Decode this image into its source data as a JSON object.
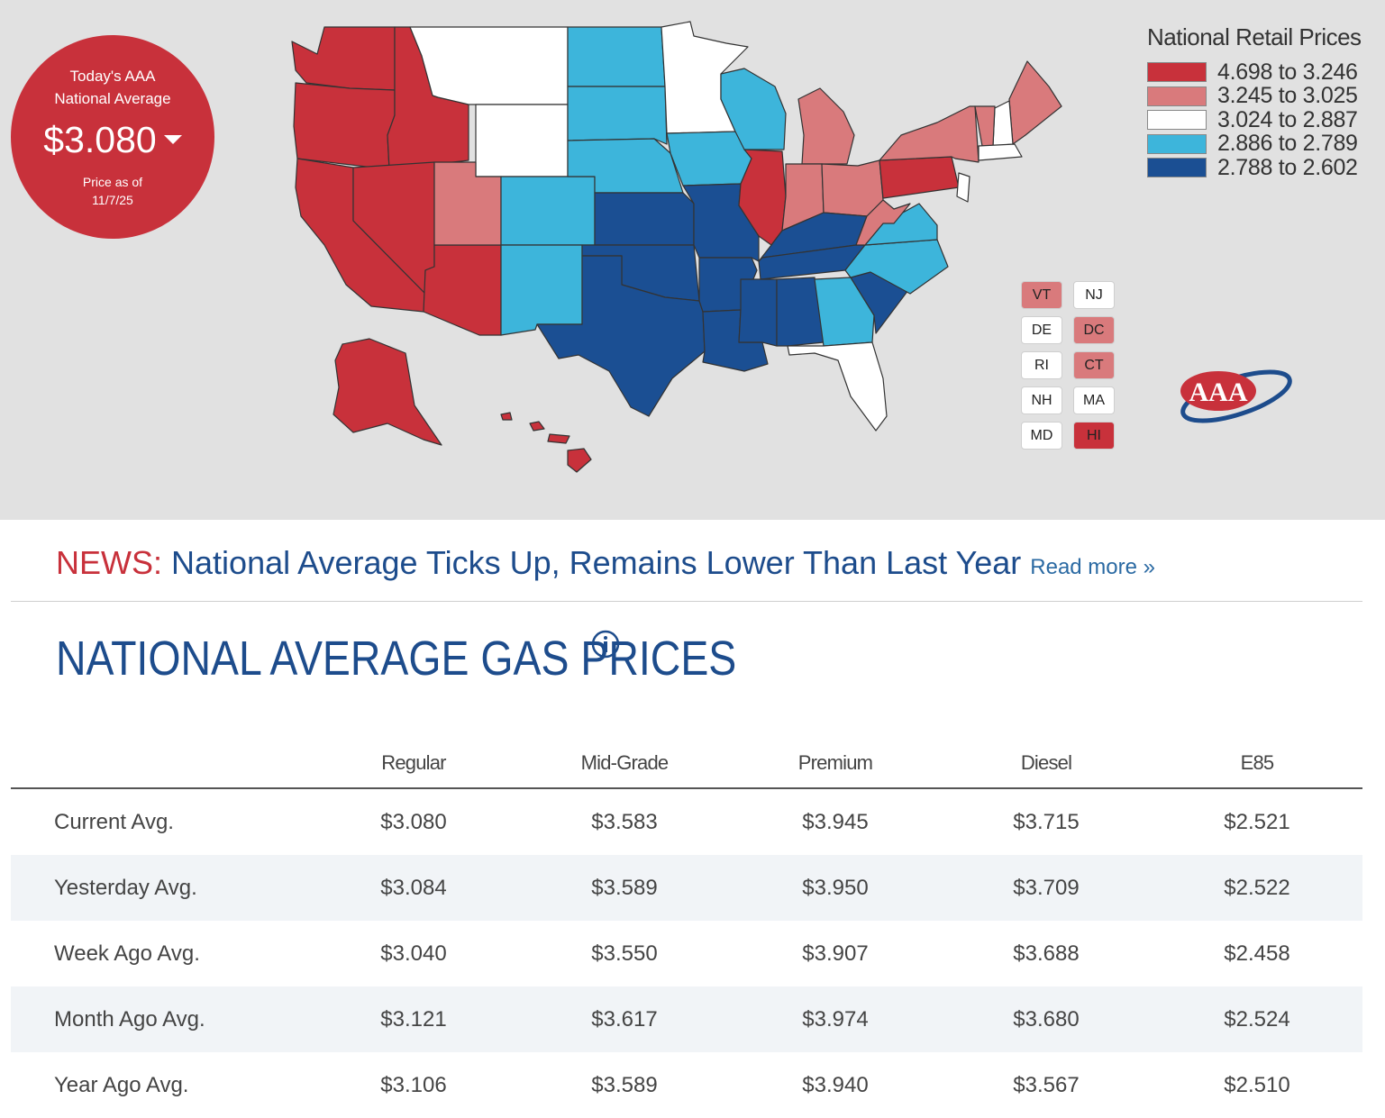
{
  "badge": {
    "title_line1": "Today's AAA",
    "title_line2": "National Average",
    "price": "$3.080",
    "date_line1": "Price as of",
    "date_line2": "11/7/25"
  },
  "legend": {
    "title": "National Retail Prices",
    "items": [
      {
        "label": "4.698 to 3.246",
        "color": "#c8313b"
      },
      {
        "label": "3.245 to 3.025",
        "color": "#d97a7c"
      },
      {
        "label": "3.024 to 2.887",
        "color": "#ffffff"
      },
      {
        "label": "2.886 to 2.789",
        "color": "#3db5db"
      },
      {
        "label": "2.788 to 2.602",
        "color": "#1b4f93"
      }
    ]
  },
  "small_states": [
    {
      "abbr": "VT",
      "color": "#d97a7c"
    },
    {
      "abbr": "NJ",
      "color": "#ffffff"
    },
    {
      "abbr": "DE",
      "color": "#ffffff"
    },
    {
      "abbr": "DC",
      "color": "#d97a7c"
    },
    {
      "abbr": "RI",
      "color": "#ffffff"
    },
    {
      "abbr": "CT",
      "color": "#d97a7c"
    },
    {
      "abbr": "NH",
      "color": "#ffffff"
    },
    {
      "abbr": "MA",
      "color": "#ffffff"
    },
    {
      "abbr": "MD",
      "color": "#ffffff"
    },
    {
      "abbr": "HI",
      "color": "#c8313b"
    }
  ],
  "logo": {
    "text": "AAA"
  },
  "news": {
    "label": "NEWS:",
    "headline": "National Average Ticks Up, Remains Lower Than Last Year",
    "read_more": "Read more »"
  },
  "section": {
    "title": "NATIONAL AVERAGE GAS PRICES",
    "info_icon": "info-icon"
  },
  "table": {
    "columns": [
      "Regular",
      "Mid-Grade",
      "Premium",
      "Diesel",
      "E85"
    ],
    "rows": [
      {
        "label": "Current Avg.",
        "values": [
          "$3.080",
          "$3.583",
          "$3.945",
          "$3.715",
          "$2.521"
        ]
      },
      {
        "label": "Yesterday Avg.",
        "values": [
          "$3.084",
          "$3.589",
          "$3.950",
          "$3.709",
          "$2.522"
        ]
      },
      {
        "label": "Week Ago Avg.",
        "values": [
          "$3.040",
          "$3.550",
          "$3.907",
          "$3.688",
          "$2.458"
        ]
      },
      {
        "label": "Month Ago Avg.",
        "values": [
          "$3.121",
          "$3.617",
          "$3.974",
          "$3.680",
          "$2.524"
        ]
      },
      {
        "label": "Year Ago Avg.",
        "values": [
          "$3.106",
          "$3.589",
          "$3.940",
          "$3.567",
          "$2.510"
        ]
      }
    ]
  }
}
